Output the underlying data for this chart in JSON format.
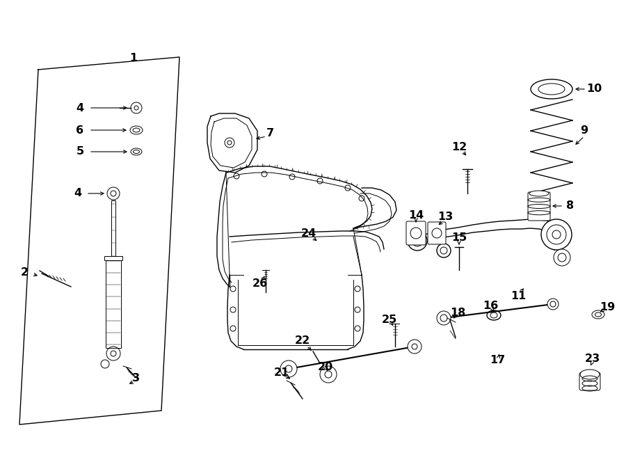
{
  "bg_color": "#ffffff",
  "line_color": "#000000",
  "lw_thin": 0.7,
  "lw_med": 1.0,
  "lw_thick": 1.5,
  "label_fontsize": 11.5,
  "figsize": [
    9.0,
    6.61
  ],
  "dpi": 100
}
